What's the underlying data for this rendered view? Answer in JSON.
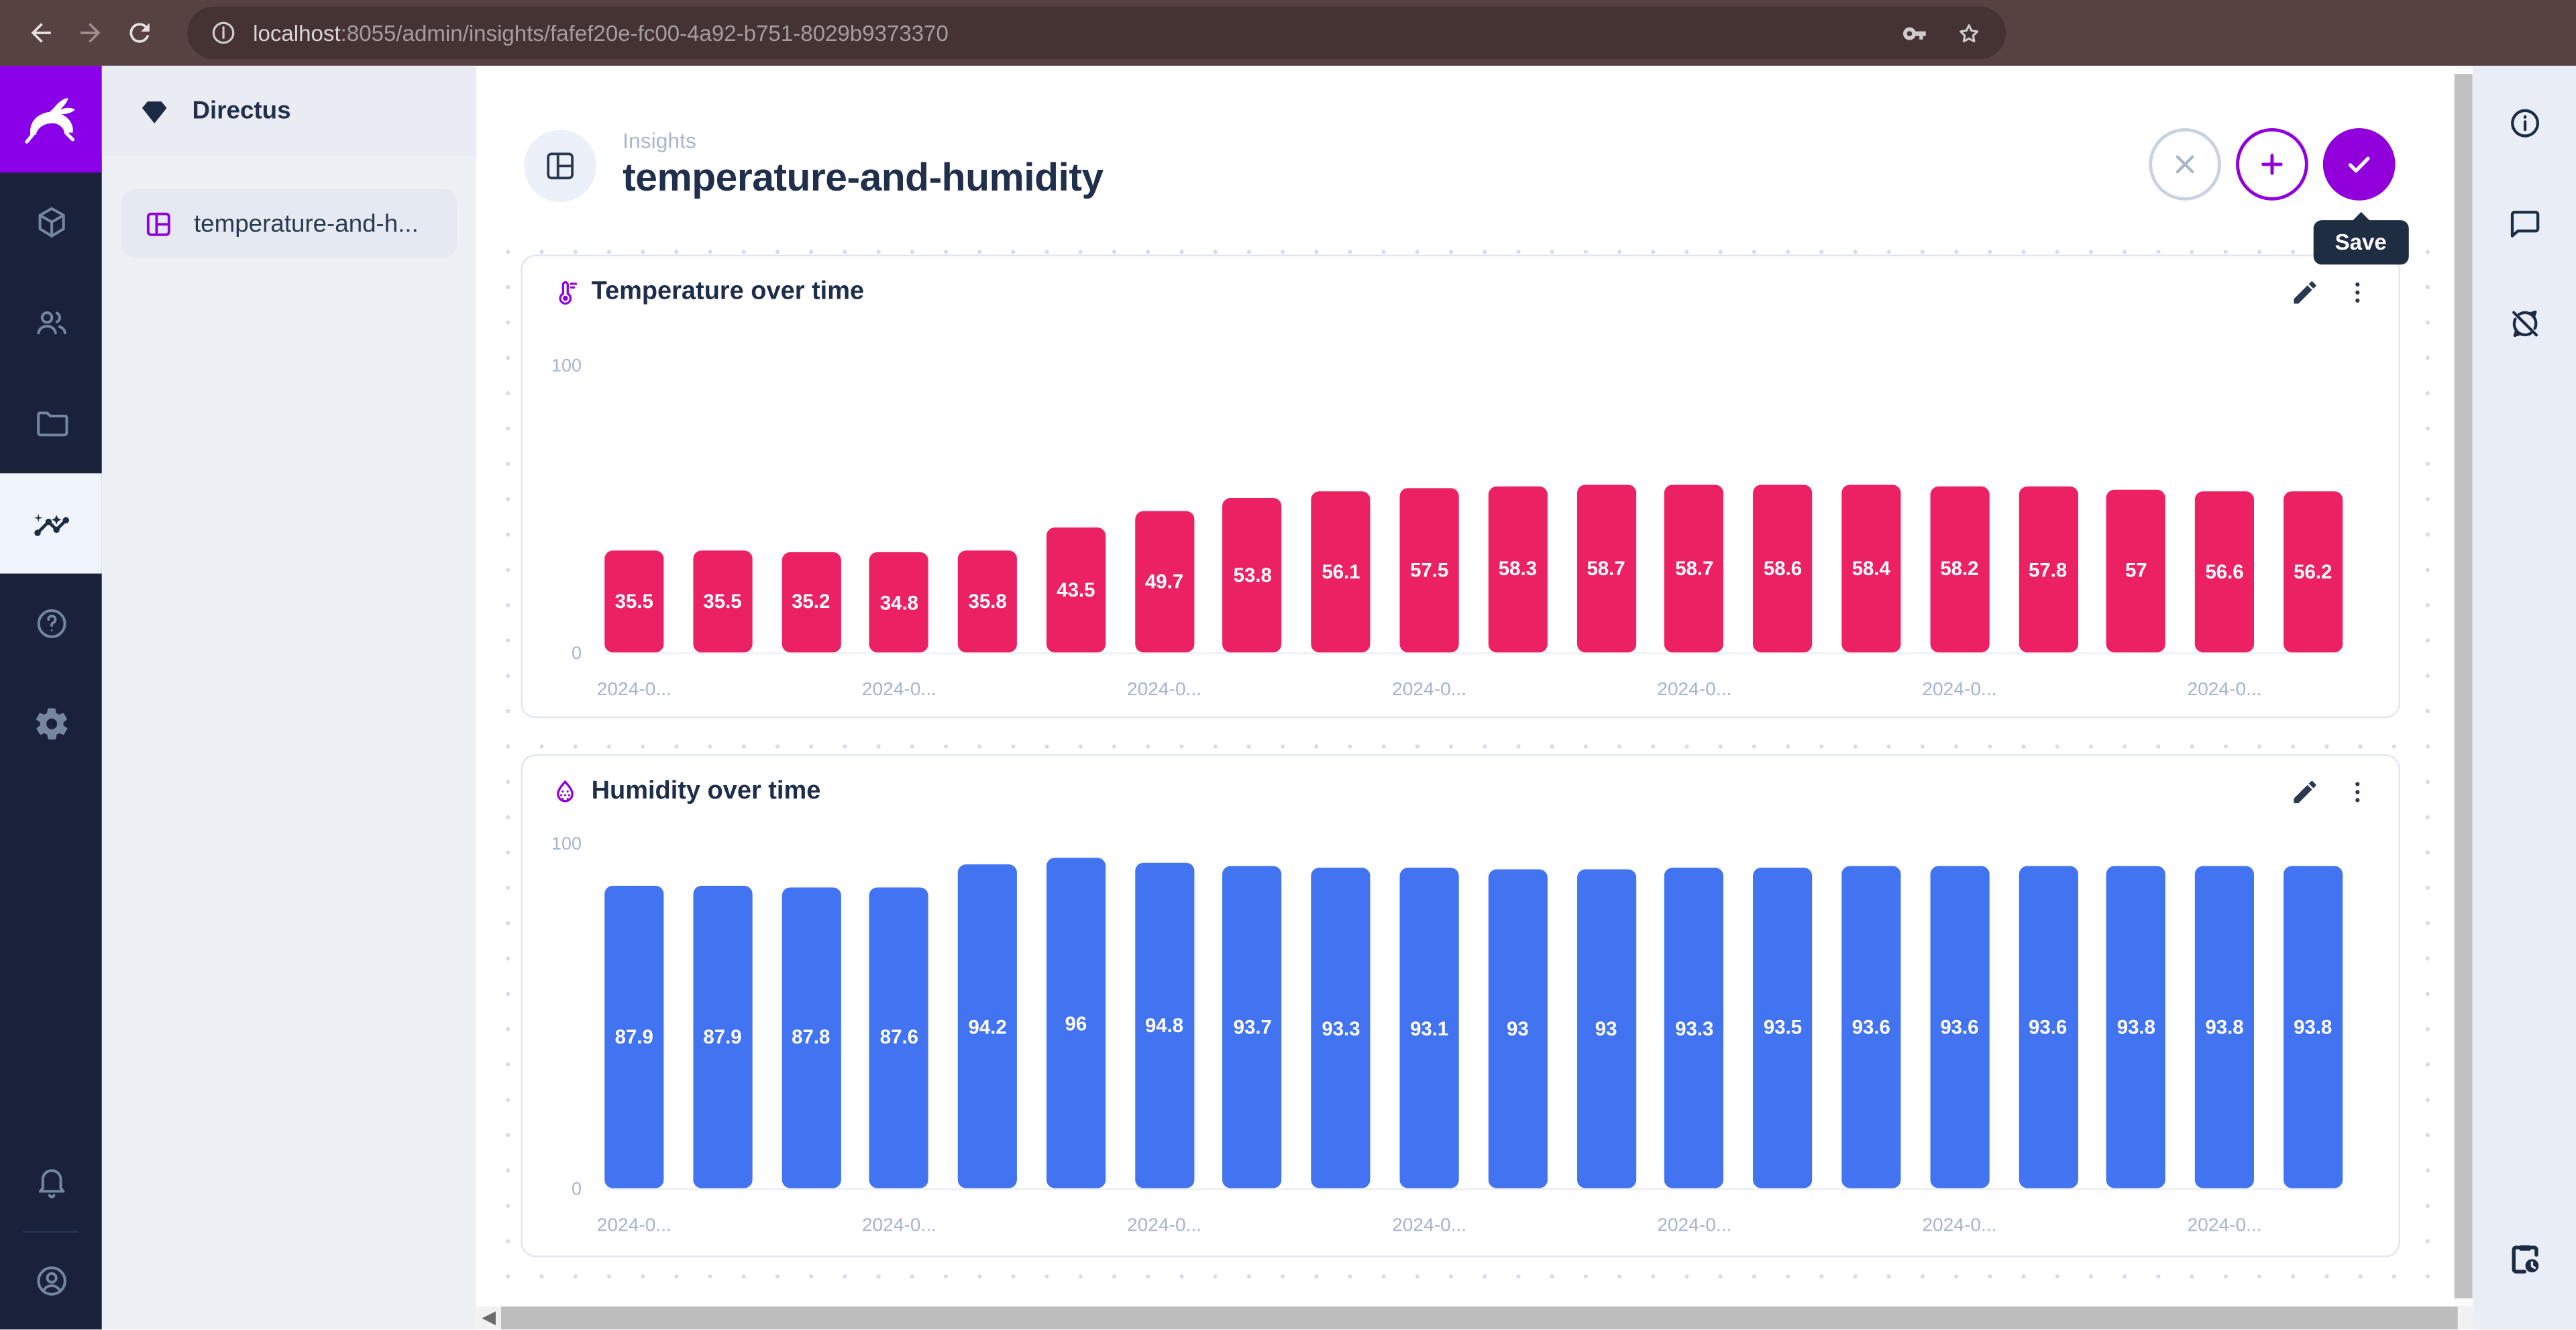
{
  "browser": {
    "url_host": "localhost",
    "url_rest": ":8055/admin/insights/fafef20e-fc00-4a92-b751-8029b9373370"
  },
  "sidebar": {
    "project_name": "Directus",
    "nav_items": [
      {
        "label": "temperature-and-h..."
      }
    ]
  },
  "header": {
    "breadcrumb": "Insights",
    "title": "temperature-and-humidity",
    "save_tooltip": "Save"
  },
  "chart_data": [
    {
      "type": "bar",
      "title": "Temperature over time",
      "icon": "thermometer-icon",
      "bar_color": "#EC2164",
      "ylim": [
        0,
        100
      ],
      "y_axis_labels": [
        "100",
        "0"
      ],
      "x_tick_label": "2024-0...",
      "x_tick_indices": [
        0,
        3,
        6,
        9,
        12,
        15,
        18
      ],
      "values": [
        35.5,
        35.5,
        35.2,
        34.8,
        35.8,
        43.5,
        49.7,
        53.8,
        56.1,
        57.5,
        58.3,
        58.7,
        58.7,
        58.6,
        58.4,
        58.2,
        57.8,
        57,
        56.6,
        56.2
      ]
    },
    {
      "type": "bar",
      "title": "Humidity over time",
      "icon": "humidity-icon",
      "bar_color": "#4273F0",
      "ylim": [
        0,
        100
      ],
      "y_axis_labels": [
        "100",
        "0"
      ],
      "x_tick_label": "2024-0...",
      "x_tick_indices": [
        0,
        3,
        6,
        9,
        12,
        15,
        18
      ],
      "values": [
        87.9,
        87.9,
        87.8,
        87.6,
        94.2,
        96,
        94.8,
        93.7,
        93.3,
        93.1,
        93,
        93,
        93.3,
        93.5,
        93.6,
        93.6,
        93.6,
        93.8,
        93.8,
        93.8
      ]
    }
  ],
  "colors": {
    "accent_purple": "#9100DB",
    "logo_purple": "#8A00E8",
    "temperature_bar": "#EC2164",
    "humidity_bar": "#4273F0",
    "module_bar_bg": "#19223A",
    "tooltip_bg": "#1F2D42",
    "browser_bar_bg": "#564241"
  }
}
